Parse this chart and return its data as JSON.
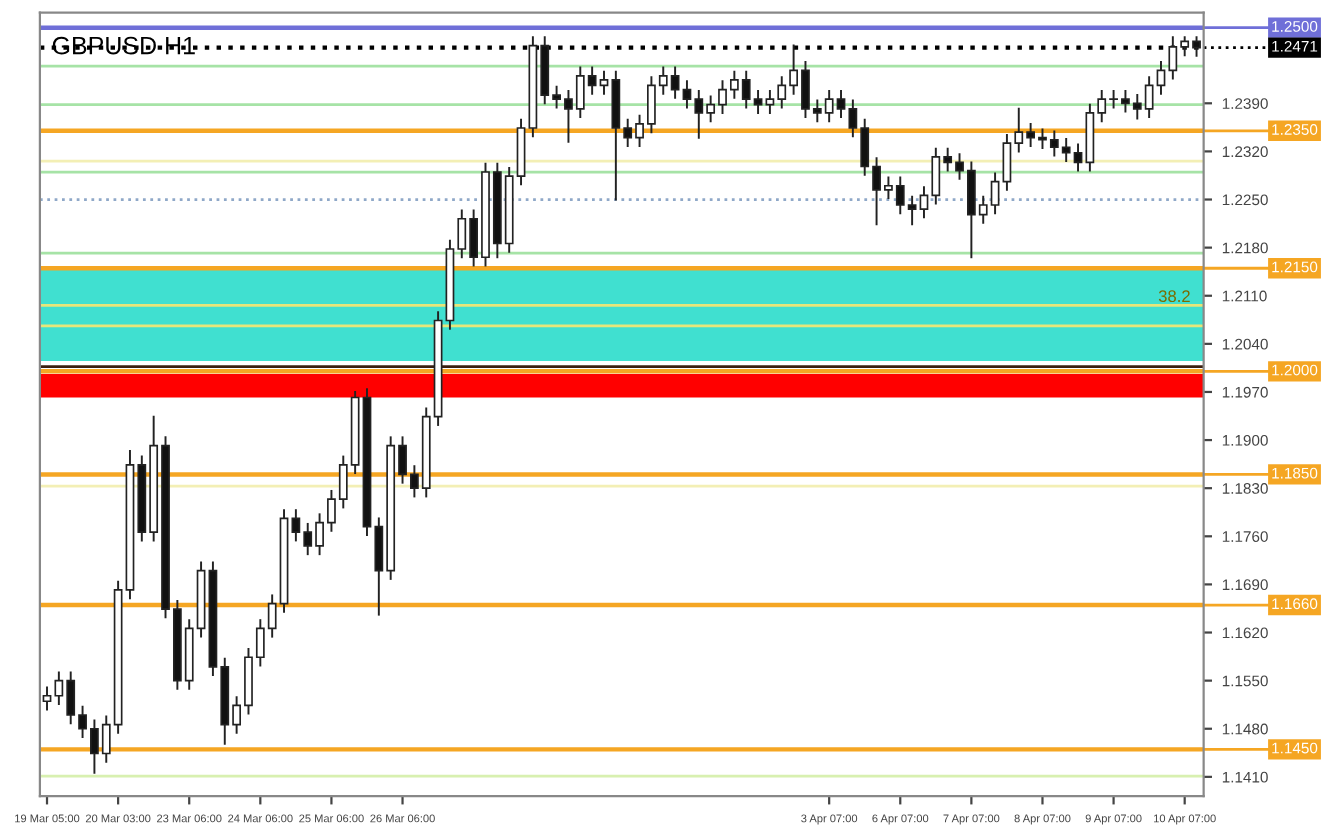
{
  "chart_data": {
    "type": "candlestick",
    "title": "GBPUSD H1",
    "categories": [
      "19 Mar 05:00",
      null,
      null,
      null,
      null,
      null,
      "20 Mar 03:00",
      null,
      null,
      null,
      null,
      null,
      "23 Mar 06:00",
      null,
      null,
      null,
      null,
      null,
      "24 Mar 06:00",
      null,
      null,
      null,
      null,
      null,
      "25 Mar 06:00",
      null,
      null,
      null,
      null,
      null,
      "26 Mar 06:00",
      null,
      null,
      null,
      null,
      null,
      null,
      null,
      null,
      null,
      null,
      null,
      null,
      null,
      null,
      null,
      null,
      null,
      null,
      null,
      null,
      null,
      null,
      null,
      null,
      null,
      null,
      null,
      null,
      null,
      null,
      null,
      null,
      null,
      null,
      null,
      "3 Apr 07:00",
      null,
      null,
      null,
      null,
      null,
      "6 Apr 07:00",
      null,
      null,
      null,
      null,
      null,
      "7 Apr 07:00",
      null,
      null,
      null,
      null,
      null,
      "8 Apr 07:00",
      null,
      null,
      null,
      null,
      null,
      "9 Apr 07:00",
      null,
      null,
      null,
      null,
      null,
      "10 Apr 07:00",
      null
    ],
    "ohlc": [
      [
        1.152,
        1.154,
        1.1508,
        1.1528
      ],
      [
        1.1528,
        1.1562,
        1.1516,
        1.155
      ],
      [
        1.155,
        1.1562,
        1.1488,
        1.15
      ],
      [
        1.15,
        1.1512,
        1.1468,
        1.148
      ],
      [
        1.148,
        1.1492,
        1.1416,
        1.1444
      ],
      [
        1.1444,
        1.1498,
        1.1432,
        1.1486
      ],
      [
        1.1486,
        1.1694,
        1.1474,
        1.1682
      ],
      [
        1.1682,
        1.1884,
        1.167,
        1.1864
      ],
      [
        1.1864,
        1.1876,
        1.1754,
        1.1766
      ],
      [
        1.1766,
        1.1934,
        1.1754,
        1.1892
      ],
      [
        1.1892,
        1.1904,
        1.1642,
        1.1654
      ],
      [
        1.1654,
        1.1666,
        1.1538,
        1.155
      ],
      [
        1.155,
        1.1638,
        1.1538,
        1.1626
      ],
      [
        1.1626,
        1.1722,
        1.1614,
        1.171
      ],
      [
        1.171,
        1.1722,
        1.1558,
        1.157
      ],
      [
        1.157,
        1.1582,
        1.1458,
        1.1486
      ],
      [
        1.1486,
        1.1526,
        1.1474,
        1.1514
      ],
      [
        1.1514,
        1.1596,
        1.1502,
        1.1584
      ],
      [
        1.1584,
        1.1638,
        1.1572,
        1.1626
      ],
      [
        1.1626,
        1.1674,
        1.1614,
        1.1662
      ],
      [
        1.1662,
        1.1798,
        1.165,
        1.1786
      ],
      [
        1.1786,
        1.1798,
        1.1754,
        1.1766
      ],
      [
        1.1766,
        1.1778,
        1.1734,
        1.1746
      ],
      [
        1.1746,
        1.1792,
        1.1734,
        1.178
      ],
      [
        1.178,
        1.1826,
        1.1768,
        1.1814
      ],
      [
        1.1814,
        1.1876,
        1.1802,
        1.1864
      ],
      [
        1.1864,
        1.197,
        1.1852,
        1.1962
      ],
      [
        1.1962,
        1.1974,
        1.1762,
        1.1774
      ],
      [
        1.1774,
        1.1786,
        1.1646,
        1.171
      ],
      [
        1.171,
        1.1904,
        1.1698,
        1.1892
      ],
      [
        1.1892,
        1.1904,
        1.1838,
        1.185
      ],
      [
        1.185,
        1.1862,
        1.1818,
        1.183
      ],
      [
        1.183,
        1.1946,
        1.1818,
        1.1934
      ],
      [
        1.1934,
        1.2086,
        1.1922,
        1.2074
      ],
      [
        1.2074,
        1.219,
        1.2062,
        1.2178
      ],
      [
        1.2178,
        1.2234,
        1.2166,
        1.2222
      ],
      [
        1.2222,
        1.2234,
        1.2154,
        1.2166
      ],
      [
        1.2166,
        1.2302,
        1.2154,
        1.229
      ],
      [
        1.229,
        1.2302,
        1.2166,
        1.2186
      ],
      [
        1.2186,
        1.2296,
        1.2174,
        1.2284
      ],
      [
        1.2284,
        1.2366,
        1.2272,
        1.2354
      ],
      [
        1.2354,
        1.2486,
        1.2342,
        1.2474
      ],
      [
        1.2474,
        1.2486,
        1.239,
        1.2402
      ],
      [
        1.2402,
        1.2414,
        1.2384,
        1.2396
      ],
      [
        1.2396,
        1.2408,
        1.2334,
        1.2382
      ],
      [
        1.2382,
        1.2442,
        1.237,
        1.243
      ],
      [
        1.243,
        1.2442,
        1.2404,
        1.2416
      ],
      [
        1.2416,
        1.2436,
        1.2404,
        1.2424
      ],
      [
        1.2424,
        1.2436,
        1.225,
        1.2354
      ],
      [
        1.2354,
        1.2366,
        1.2328,
        1.234
      ],
      [
        1.234,
        1.2372,
        1.2328,
        1.236
      ],
      [
        1.236,
        1.2428,
        1.2348,
        1.2416
      ],
      [
        1.2416,
        1.2442,
        1.2404,
        1.243
      ],
      [
        1.243,
        1.2442,
        1.2398,
        1.241
      ],
      [
        1.241,
        1.2422,
        1.2384,
        1.2396
      ],
      [
        1.2396,
        1.2408,
        1.234,
        1.2376
      ],
      [
        1.2376,
        1.24,
        1.2364,
        1.2388
      ],
      [
        1.2388,
        1.2422,
        1.2376,
        1.241
      ],
      [
        1.241,
        1.2436,
        1.2398,
        1.2424
      ],
      [
        1.2424,
        1.2436,
        1.2384,
        1.2396
      ],
      [
        1.2396,
        1.2408,
        1.2376,
        1.2388
      ],
      [
        1.2388,
        1.2408,
        1.2376,
        1.2396
      ],
      [
        1.2396,
        1.2428,
        1.2384,
        1.2416
      ],
      [
        1.2416,
        1.2474,
        1.2404,
        1.2438
      ],
      [
        1.2438,
        1.245,
        1.237,
        1.2382
      ],
      [
        1.2382,
        1.2394,
        1.2364,
        1.2376
      ],
      [
        1.2376,
        1.2408,
        1.2364,
        1.2396
      ],
      [
        1.2396,
        1.2408,
        1.237,
        1.2382
      ],
      [
        1.2382,
        1.2394,
        1.2342,
        1.2354
      ],
      [
        1.2354,
        1.2366,
        1.2286,
        1.2298
      ],
      [
        1.2298,
        1.231,
        1.2214,
        1.2264
      ],
      [
        1.2264,
        1.2282,
        1.2252,
        1.227
      ],
      [
        1.227,
        1.2282,
        1.223,
        1.2242
      ],
      [
        1.2242,
        1.2254,
        1.2214,
        1.2236
      ],
      [
        1.2236,
        1.2268,
        1.2224,
        1.2256
      ],
      [
        1.2256,
        1.2324,
        1.2244,
        1.2312
      ],
      [
        1.2312,
        1.2324,
        1.2292,
        1.2304
      ],
      [
        1.2304,
        1.2316,
        1.228,
        1.2292
      ],
      [
        1.2292,
        1.2304,
        1.2166,
        1.2228
      ],
      [
        1.2228,
        1.2254,
        1.2216,
        1.2242
      ],
      [
        1.2242,
        1.2288,
        1.223,
        1.2276
      ],
      [
        1.2276,
        1.2344,
        1.2264,
        1.2332
      ],
      [
        1.2332,
        1.2382,
        1.232,
        1.2348
      ],
      [
        1.2348,
        1.236,
        1.2328,
        1.234
      ],
      [
        1.234,
        1.2352,
        1.2325,
        1.2337
      ],
      [
        1.2337,
        1.2349,
        1.2314,
        1.2326
      ],
      [
        1.2326,
        1.2338,
        1.2306,
        1.2318
      ],
      [
        1.2318,
        1.233,
        1.2292,
        1.2304
      ],
      [
        1.2304,
        1.2388,
        1.2292,
        1.2376
      ],
      [
        1.2376,
        1.2408,
        1.2364,
        1.2396
      ],
      [
        1.2396,
        1.2408,
        1.2384,
        1.2396
      ],
      [
        1.2396,
        1.2408,
        1.2378,
        1.239
      ],
      [
        1.239,
        1.2402,
        1.2368,
        1.2382
      ],
      [
        1.2382,
        1.2428,
        1.237,
        1.2416
      ],
      [
        1.2416,
        1.245,
        1.2404,
        1.2438
      ],
      [
        1.2438,
        1.2486,
        1.2426,
        1.2472
      ],
      [
        1.2472,
        1.2486,
        1.246,
        1.248
      ],
      [
        1.248,
        1.2486,
        1.2459,
        1.2471
      ]
    ],
    "ylim": [
      1.1382,
      1.2522
    ],
    "yticks": [
      {
        "value": 1.239,
        "label": "1.2390"
      },
      {
        "value": 1.232,
        "label": "1.2320"
      },
      {
        "value": 1.225,
        "label": "1.2250"
      },
      {
        "value": 1.218,
        "label": "1.2180"
      },
      {
        "value": 1.211,
        "label": "1.2110"
      },
      {
        "value": 1.204,
        "label": "1.2040"
      },
      {
        "value": 1.197,
        "label": "1.1970"
      },
      {
        "value": 1.19,
        "label": "1.1900"
      },
      {
        "value": 1.183,
        "label": "1.1830"
      },
      {
        "value": 1.176,
        "label": "1.1760"
      },
      {
        "value": 1.169,
        "label": "1.1690"
      },
      {
        "value": 1.162,
        "label": "1.1620"
      },
      {
        "value": 1.155,
        "label": "1.1550"
      },
      {
        "value": 1.148,
        "label": "1.1480"
      },
      {
        "value": 1.141,
        "label": "1.1410"
      }
    ],
    "bands": [
      {
        "axis": "y",
        "from": 1.2015,
        "to": 1.215,
        "color": "#40e0d0",
        "label": null
      },
      {
        "axis": "y",
        "from": 1.1962,
        "to": 1.1996,
        "color": "#ff0000",
        "label": null
      }
    ],
    "ref_lines": [
      {
        "axis": "y",
        "value": 1.25,
        "label": "1.2500",
        "color": "#6f6fd8",
        "line_style": "solid"
      },
      {
        "axis": "y",
        "value": 1.2471,
        "label": "1.2471",
        "color": "#000000",
        "line_style": "dotted"
      },
      {
        "axis": "y",
        "value": 1.2444,
        "label": null,
        "color": "#a6e3a6",
        "line_style": "solid"
      },
      {
        "axis": "y",
        "value": 1.2388,
        "label": null,
        "color": "#a6e3a6",
        "line_style": "solid"
      },
      {
        "axis": "y",
        "value": 1.235,
        "label": "1.2350",
        "color": "#f5a623",
        "line_style": "solid"
      },
      {
        "axis": "y",
        "value": 1.2306,
        "label": null,
        "color": "#f3efb5",
        "line_style": "solid"
      },
      {
        "axis": "y",
        "value": 1.229,
        "label": null,
        "color": "#a6e3a6",
        "line_style": "solid"
      },
      {
        "axis": "y",
        "value": 1.225,
        "label": null,
        "color": "#8fa8c8",
        "line_style": "dotted"
      },
      {
        "axis": "y",
        "value": 1.2172,
        "label": null,
        "color": "#a6e3a6",
        "line_style": "solid"
      },
      {
        "axis": "y",
        "value": 1.215,
        "label": "1.2150",
        "color": "#f5a623",
        "line_style": "solid"
      },
      {
        "axis": "y",
        "value": 1.2096,
        "label": null,
        "color": "#e6e67a",
        "line_style": "solid"
      },
      {
        "axis": "y",
        "value": 1.2066,
        "label": null,
        "color": "#e6e67a",
        "line_style": "solid"
      },
      {
        "axis": "y",
        "value": 1.2007,
        "label": null,
        "color": "#3a1f10",
        "line_style": "solid"
      },
      {
        "axis": "y",
        "value": 1.2,
        "label": "1.2000",
        "color": "#f5a623",
        "line_style": "solid"
      },
      {
        "axis": "y",
        "value": 1.185,
        "label": "1.1850",
        "color": "#f5a623",
        "line_style": "solid"
      },
      {
        "axis": "y",
        "value": 1.1833,
        "label": null,
        "color": "#f3efb5",
        "line_style": "solid"
      },
      {
        "axis": "y",
        "value": 1.166,
        "label": "1.1660",
        "color": "#f5a623",
        "line_style": "solid"
      },
      {
        "axis": "y",
        "value": 1.145,
        "label": "1.1450",
        "color": "#f5a623",
        "line_style": "solid"
      },
      {
        "axis": "y",
        "value": 1.1411,
        "label": null,
        "color": "#d8f0b0",
        "line_style": "solid"
      }
    ],
    "annotations": [
      {
        "text": "38.2",
        "y": 1.2096
      }
    ],
    "grid": false,
    "legend": false
  }
}
